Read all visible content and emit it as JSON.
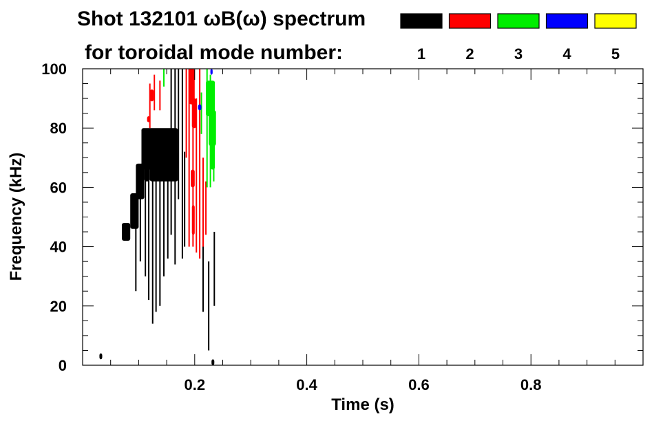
{
  "chart_data": {
    "type": "heatmap",
    "title_line1": "Shot 132101 ωB(ω) spectrum",
    "title_line2": "for toroidal mode number:",
    "xlabel": "Time (s)",
    "ylabel": "Frequency (kHz)",
    "xlim": [
      0.0,
      1.0
    ],
    "ylim": [
      0,
      100
    ],
    "x_ticks": [
      0.2,
      0.4,
      0.6,
      0.8
    ],
    "x_tick_labels": [
      "0.2",
      "0.4",
      "0.6",
      "0.8"
    ],
    "y_ticks": [
      0,
      20,
      40,
      60,
      80,
      100
    ],
    "y_tick_labels": [
      "0",
      "20",
      "40",
      "60",
      "80",
      "100"
    ],
    "x_minor_step": 0.05,
    "y_minor_step": 5,
    "grid": false,
    "legend_placement": "top-right",
    "legend": [
      {
        "label": "1",
        "color": "#000000"
      },
      {
        "label": "2",
        "color": "#ff0000"
      },
      {
        "label": "3",
        "color": "#00ee00"
      },
      {
        "label": "4",
        "color": "#0000ff"
      },
      {
        "label": "5",
        "color": "#ffff00"
      }
    ],
    "series": [
      {
        "mode": 1,
        "color": "#000000",
        "blobs": [
          {
            "x": [
              0.07,
              0.085
            ],
            "y": [
              42,
              48
            ]
          },
          {
            "x": [
              0.085,
              0.1
            ],
            "y": [
              46,
              58
            ]
          },
          {
            "x": [
              0.095,
              0.11
            ],
            "y": [
              56,
              68
            ]
          },
          {
            "x": [
              0.105,
              0.17
            ],
            "y": [
              66,
              80
            ]
          },
          {
            "x": [
              0.12,
              0.17
            ],
            "y": [
              62,
              72
            ]
          },
          {
            "x": [
              0.11,
              0.12
            ],
            "y": [
              62,
              74
            ]
          },
          {
            "x": [
              0.03,
              0.035
            ],
            "y": [
              2,
              4
            ]
          },
          {
            "x": [
              0.23,
              0.235
            ],
            "y": [
              0,
              2
            ]
          }
        ],
        "streaks": [
          {
            "x": 0.095,
            "y": [
              25,
              55
            ]
          },
          {
            "x": 0.103,
            "y": [
              35,
              60
            ]
          },
          {
            "x": 0.112,
            "y": [
              30,
              68
            ]
          },
          {
            "x": 0.118,
            "y": [
              22,
              70
            ]
          },
          {
            "x": 0.125,
            "y": [
              14,
              72
            ]
          },
          {
            "x": 0.131,
            "y": [
              18,
              76
            ]
          },
          {
            "x": 0.138,
            "y": [
              20,
              75
            ]
          },
          {
            "x": 0.145,
            "y": [
              30,
              74
            ]
          },
          {
            "x": 0.152,
            "y": [
              36,
              70
            ]
          },
          {
            "x": 0.158,
            "y": [
              44,
              100
            ]
          },
          {
            "x": 0.165,
            "y": [
              34,
              100
            ]
          },
          {
            "x": 0.171,
            "y": [
              56,
              100
            ]
          },
          {
            "x": 0.178,
            "y": [
              36,
              100
            ]
          },
          {
            "x": 0.182,
            "y": [
              40,
              72
            ]
          },
          {
            "x": 0.215,
            "y": [
              18,
              50
            ]
          },
          {
            "x": 0.225,
            "y": [
              5,
              35
            ]
          },
          {
            "x": 0.235,
            "y": [
              20,
              45
            ]
          }
        ]
      },
      {
        "mode": 2,
        "color": "#ff0000",
        "blobs": [
          {
            "x": [
              0.19,
              0.2
            ],
            "y": [
              88,
              100
            ]
          },
          {
            "x": [
              0.195,
              0.203
            ],
            "y": [
              80,
              90
            ]
          },
          {
            "x": [
              0.193,
              0.2
            ],
            "y": [
              60,
              66
            ]
          },
          {
            "x": [
              0.195,
              0.2
            ],
            "y": [
              44,
              54
            ]
          },
          {
            "x": [
              0.12,
              0.127
            ],
            "y": [
              89,
              93
            ]
          },
          {
            "x": [
              0.115,
              0.12
            ],
            "y": [
              82,
              84
            ]
          }
        ],
        "streaks": [
          {
            "x": 0.185,
            "y": [
              70,
              100
            ]
          },
          {
            "x": 0.19,
            "y": [
              40,
              100
            ]
          },
          {
            "x": 0.197,
            "y": [
              40,
              100
            ]
          },
          {
            "x": 0.203,
            "y": [
              38,
              90
            ]
          },
          {
            "x": 0.209,
            "y": [
              36,
              100
            ]
          },
          {
            "x": 0.215,
            "y": [
              40,
              70
            ]
          },
          {
            "x": 0.22,
            "y": [
              44,
              62
            ]
          },
          {
            "x": 0.12,
            "y": [
              80,
              95
            ]
          },
          {
            "x": 0.128,
            "y": [
              86,
              98
            ]
          },
          {
            "x": 0.138,
            "y": [
              86,
              96
            ]
          }
        ]
      },
      {
        "mode": 3,
        "color": "#00ee00",
        "blobs": [
          {
            "x": [
              0.22,
              0.236
            ],
            "y": [
              84,
              96
            ]
          },
          {
            "x": [
              0.225,
              0.238
            ],
            "y": [
              74,
              86
            ]
          },
          {
            "x": [
              0.228,
              0.236
            ],
            "y": [
              66,
              75
            ]
          }
        ],
        "streaks": [
          {
            "x": 0.222,
            "y": [
              60,
              100
            ]
          },
          {
            "x": 0.228,
            "y": [
              60,
              98
            ]
          },
          {
            "x": 0.234,
            "y": [
              62,
              92
            ]
          },
          {
            "x": 0.212,
            "y": [
              78,
              92
            ]
          },
          {
            "x": 0.145,
            "y": [
              94,
              100
            ]
          }
        ]
      },
      {
        "mode": 4,
        "color": "#0000ff",
        "blobs": [
          {
            "x": [
              0.206,
              0.212
            ],
            "y": [
              86,
              88
            ]
          },
          {
            "x": [
              0.228,
              0.232
            ],
            "y": [
              98,
              100
            ]
          }
        ],
        "streaks": []
      },
      {
        "mode": 5,
        "color": "#ffff00",
        "blobs": [],
        "streaks": []
      }
    ]
  }
}
